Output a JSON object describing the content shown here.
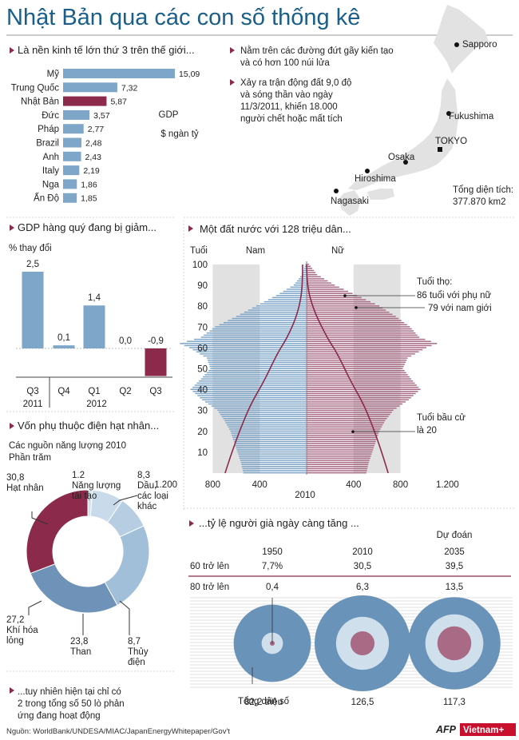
{
  "title": "Nhật Bản qua các con số thống kê",
  "gdp_rank": {
    "heading": "Là nền kinh tế lớn thứ 3 trên thế giới...",
    "unit1": "GDP",
    "unit2": "$ ngàn tỷ",
    "accent": "#8b2a4a",
    "bar_color": "#7ea6c9"
  },
  "facts": {
    "f1": [
      "Nằm trên các đường đứt gãy kiến tạo",
      "và có hơn 100 núi lửa"
    ],
    "f2": [
      "Xảy ra trận động đất 9,0 độ",
      "và sóng thần vào ngày",
      "11/3/2011, khiến 18.000",
      "người chết hoặc mất tích"
    ],
    "area_label": "Tổng diện tích:",
    "area_value": "377.870 km2"
  },
  "cities": {
    "sapporo": "Sapporo",
    "fukushima": "Fukushima",
    "tokyo": "TOKYO",
    "osaka": "Osaka",
    "hiroshima": "Hiroshima",
    "nagasaki": "Nagasaki"
  },
  "qgdp": {
    "heading": "GDP hàng quý đang bị giảm...",
    "unit": "% thay đổi",
    "years": [
      "2011",
      "2012"
    ]
  },
  "energy": {
    "heading": "Vốn phụ thuộc điện hạt nhân...",
    "subtitle": "Các nguồn năng lượng 2010",
    "unit": "Phần trăm",
    "note": [
      "...tuy nhiên hiện tại chỉ có",
      "2 trong tổng số 50 lò phản",
      "ứng đang hoạt động"
    ]
  },
  "pyramid": {
    "heading": "Một đất nước với 128 triệu dân...",
    "age_label": "Tuổi",
    "male": "Nam",
    "female": "Nữ",
    "year": "2010",
    "life_title": "Tuổi thọ:",
    "life_female": "86 tuổi với phụ nữ",
    "life_male": "79 với nam giới",
    "vote": [
      "Tuổi bầu cử",
      "là 20"
    ],
    "male_color": "#7ea6c9",
    "female_color": "#a86a84",
    "band_color": "#e1e1e1",
    "line_color": "#8b2a4a"
  },
  "aging": {
    "heading": "...tỷ lệ người già ngày càng tăng ...",
    "forecast": "Dự đoán",
    "total_label": "Tổng dân số"
  },
  "source": "Nguồn: WorldBank/UNDESA/MIAC/JapanEnergyWhitepaper/Gov't",
  "logos": {
    "afp": "AFP",
    "vietnamplus": "Vietnam+"
  },
  "chart_data": [
    {
      "type": "bar",
      "orientation": "horizontal",
      "title": "Là nền kinh tế lớn thứ 3 trên thế giới...",
      "unit": "GDP $ ngàn tỷ",
      "categories": [
        "Mỹ",
        "Trung Quốc",
        "Nhật Bản",
        "Đức",
        "Pháp",
        "Brazil",
        "Anh",
        "Italy",
        "Nga",
        "Ấn Độ"
      ],
      "labels": [
        "15,09",
        "7,32",
        "5,87",
        "3,57",
        "2,77",
        "2,48",
        "2,43",
        "2,19",
        "1,86",
        "1,85"
      ],
      "values": [
        15.09,
        7.32,
        5.87,
        3.57,
        2.77,
        2.48,
        2.43,
        2.19,
        1.86,
        1.85
      ],
      "highlight": "Nhật Bản"
    },
    {
      "type": "bar",
      "title": "GDP hàng quý đang bị giảm...",
      "ylabel": "% thay đổi",
      "categories": [
        "Q3",
        "Q4",
        "Q1",
        "Q2",
        "Q3"
      ],
      "years": [
        "2011",
        "2011",
        "2012",
        "2012",
        "2012"
      ],
      "labels": [
        "2,5",
        "0,1",
        "1,4",
        "0,0",
        "-0,9"
      ],
      "values": [
        2.5,
        0.1,
        1.4,
        0.0,
        -0.9
      ]
    },
    {
      "type": "pie",
      "donut": true,
      "title": "Các nguồn năng lượng 2010",
      "unit": "Phần trăm",
      "slices": [
        {
          "label": "Năng lượng tái tạo",
          "value": 1.2,
          "text": "1.2",
          "color": "#d3e1ee"
        },
        {
          "label": "Dầu, các loại khác",
          "value": 8.3,
          "text": "8,3",
          "color": "#c9dbeb"
        },
        {
          "label": "Thủy điện",
          "value": 8.7,
          "text": "8,7",
          "color": "#b6cde2"
        },
        {
          "label": "Than",
          "value": 23.8,
          "text": "23,8",
          "color": "#a2bfd9"
        },
        {
          "label": "Khí hóa lỏng",
          "value": 27.2,
          "text": "27,2",
          "color": "#6f93b8"
        },
        {
          "label": "Hạt nhân",
          "value": 30.8,
          "text": "30,8",
          "color": "#8b2a4a"
        }
      ]
    },
    {
      "type": "bar",
      "subtype": "population-pyramid",
      "title": "Một đất nước với 128 triệu dân...",
      "year": "2010",
      "ylabel": "Tuổi",
      "xlabel_ticks": [
        "1.200",
        "800",
        "400",
        "400",
        "800",
        "1.200"
      ],
      "x_ticks_values": [
        -1200,
        -800,
        -400,
        400,
        800,
        1200
      ],
      "age_ticks": [
        10,
        20,
        30,
        40,
        50,
        60,
        70,
        80,
        90,
        100
      ],
      "ages": [
        0,
        5,
        10,
        15,
        20,
        25,
        30,
        35,
        40,
        45,
        50,
        55,
        60,
        62,
        65,
        70,
        75,
        80,
        85,
        90,
        95,
        100
      ],
      "male": [
        540,
        560,
        590,
        620,
        650,
        700,
        760,
        890,
        990,
        900,
        820,
        850,
        1000,
        1080,
        900,
        780,
        600,
        430,
        260,
        110,
        40,
        10
      ],
      "female": [
        510,
        530,
        560,
        590,
        620,
        670,
        740,
        870,
        970,
        890,
        820,
        860,
        1020,
        1110,
        960,
        880,
        760,
        620,
        430,
        240,
        90,
        20
      ],
      "series": [
        {
          "name": "Nam"
        },
        {
          "name": "Nữ"
        }
      ]
    },
    {
      "type": "table",
      "title": "...tỷ lệ người già ngày càng tăng ...",
      "columns": [
        "1950",
        "2010",
        "2035"
      ],
      "rows": [
        {
          "label": "60 trở lên",
          "values": [
            "7,7%",
            "30,5",
            "39,5"
          ],
          "numbers": [
            7.7,
            30.5,
            39.5
          ]
        },
        {
          "label": "80 trở lên",
          "values": [
            "0,4",
            "6,3",
            "13,5"
          ],
          "numbers": [
            0.4,
            6.3,
            13.5
          ]
        },
        {
          "label": "Tổng dân số",
          "values": [
            "82,2 triệu",
            "126,5",
            "117,3"
          ],
          "numbers": [
            82.2,
            126.5,
            117.3
          ]
        }
      ]
    }
  ]
}
